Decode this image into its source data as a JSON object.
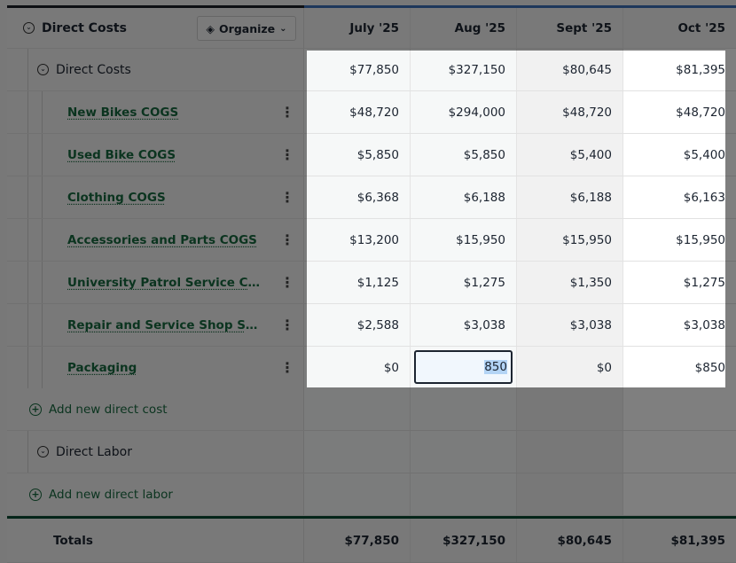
{
  "header": {
    "title": "Direct Costs",
    "organize_label": "Organize",
    "columns": [
      "July '25",
      "Aug '25",
      "Sept '25",
      "Oct '25"
    ]
  },
  "group": {
    "label": "Direct Costs",
    "values": [
      "$77,850",
      "$327,150",
      "$80,645",
      "$81,395"
    ]
  },
  "items": [
    {
      "label": "New Bikes COGS",
      "values": [
        "$48,720",
        "$294,000",
        "$48,720",
        "$48,720"
      ]
    },
    {
      "label": "Used Bike COGS",
      "values": [
        "$5,850",
        "$5,850",
        "$5,400",
        "$5,400"
      ]
    },
    {
      "label": "Clothing COGS",
      "values": [
        "$6,368",
        "$6,188",
        "$6,188",
        "$6,163"
      ]
    },
    {
      "label": "Accessories and Parts COGS",
      "values": [
        "$13,200",
        "$15,950",
        "$15,950",
        "$15,950"
      ]
    },
    {
      "label": "University Patrol Service Contr...",
      "values": [
        "$1,125",
        "$1,275",
        "$1,350",
        "$1,275"
      ]
    },
    {
      "label": "Repair and Service Shop Suppl...",
      "values": [
        "$2,588",
        "$3,038",
        "$3,038",
        "$3,038"
      ]
    },
    {
      "label": "Packaging",
      "values": [
        "$0",
        "",
        "$0",
        "$850"
      ]
    }
  ],
  "editing_value": "850",
  "add_direct_cost": "Add new direct cost",
  "direct_labor": "Direct Labor",
  "add_direct_labor": "Add new direct labor",
  "totals": {
    "label": "Totals",
    "values": [
      "$77,850",
      "$327,150",
      "$80,645",
      "$81,395"
    ]
  },
  "colors": {
    "link": "#17683f",
    "accent": "#3b6fb6",
    "totals_rule": "#0b4a32"
  }
}
